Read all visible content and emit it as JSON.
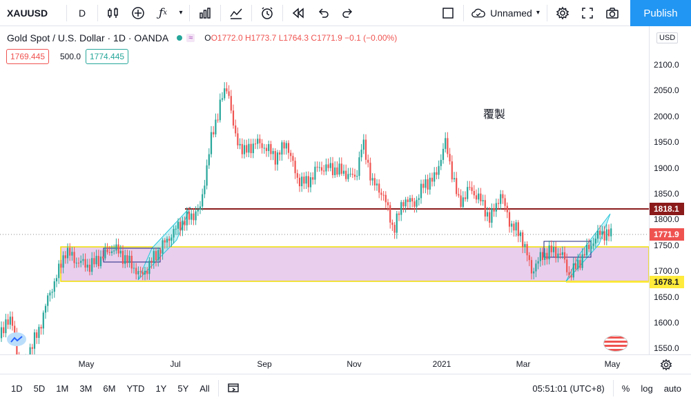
{
  "toolbar": {
    "symbol": "XAUUSD",
    "interval": "D",
    "layout_name": "Unnamed",
    "publish_label": "Publish"
  },
  "legend": {
    "title": "Gold Spot / U.S. Dollar · 1D · OANDA",
    "open": "O1772.0",
    "high": "H1773.7",
    "low": "L1764.3",
    "close": "C1771.9",
    "change": "−0.1 (−0.00%)",
    "bid": "1769.445",
    "spread": "500.0",
    "ask": "1774.445"
  },
  "watermark": "覆製",
  "price_axis": {
    "currency": "USD",
    "ticks": [
      "2100.0",
      "2050.0",
      "2000.0",
      "1950.0",
      "1900.0",
      "1850.0",
      "1800.0",
      "1750.0",
      "1700.0",
      "1650.0",
      "1600.0",
      "1550.0"
    ],
    "tag_resistance": "1818.1",
    "tag_last": "1771.9",
    "tag_support": "1678.1"
  },
  "time_axis": {
    "labels": [
      "May",
      "Jul",
      "Sep",
      "Nov",
      "2021",
      "Mar",
      "May"
    ]
  },
  "bottom_bar": {
    "ranges": [
      "1D",
      "5D",
      "1M",
      "3M",
      "6M",
      "YTD",
      "1Y",
      "5Y",
      "All"
    ],
    "clock": "05:51:01 (UTC+8)",
    "percent": "%",
    "log": "log",
    "auto": "auto"
  },
  "colors": {
    "up": "#26a69a",
    "down": "#ef5350",
    "resistance": "#8b1a1a",
    "support": "#ffeb3b",
    "zone": "#e1bee7",
    "channel": "#80deea",
    "publish": "#2196f3"
  }
}
